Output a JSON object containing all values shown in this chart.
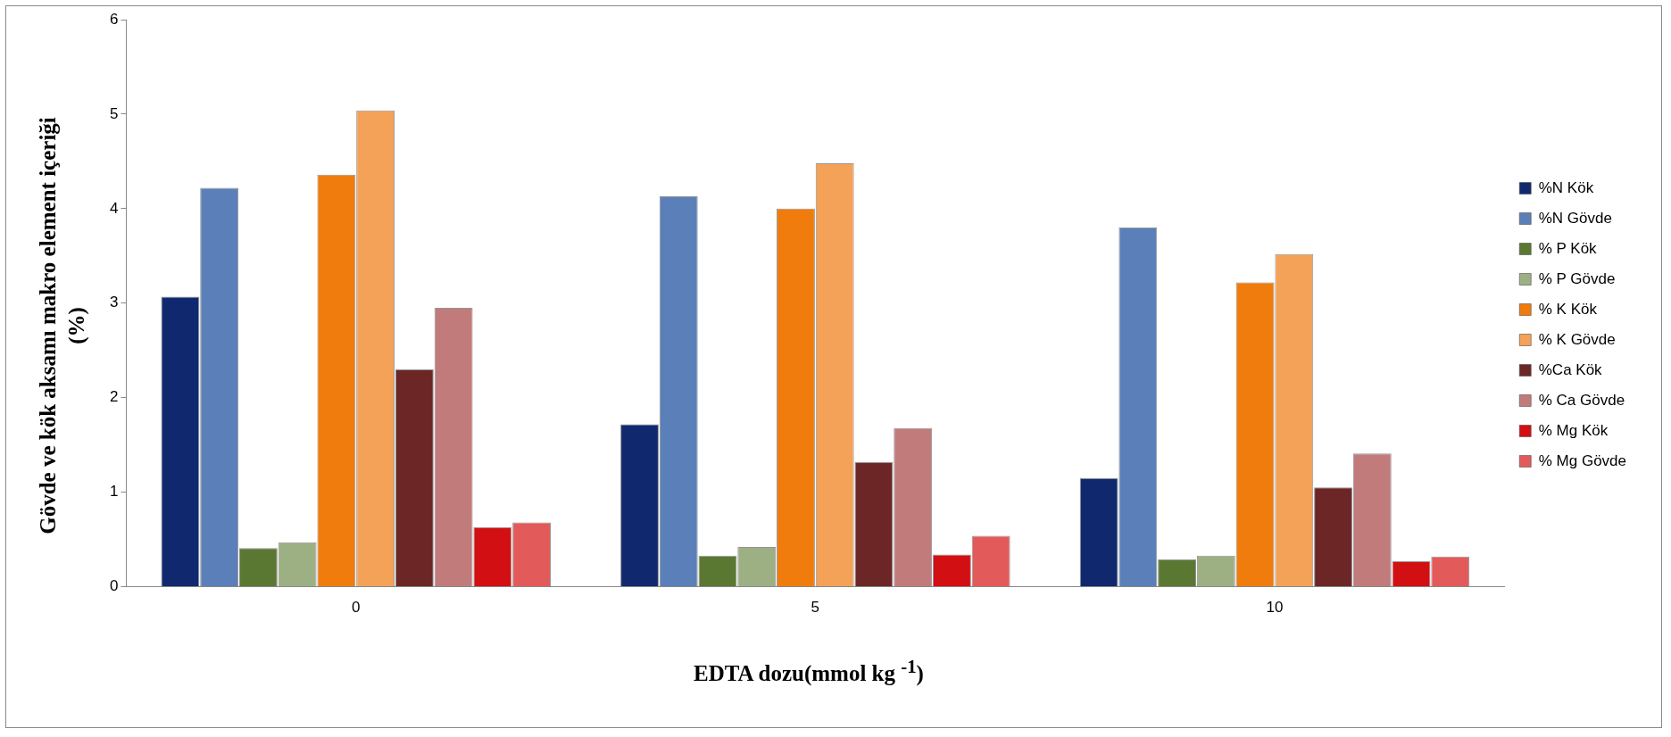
{
  "chart_data": {
    "type": "bar",
    "xlabel": "EDTA dozu(mmol  kg $^{-1}$)",
    "ylabel": "Gövde ve kök aksamı makro element içeriği (%)",
    "categories": [
      "0",
      "5",
      "10"
    ],
    "series": [
      {
        "name": "%N Kök",
        "color": "#10296e",
        "values": [
          3.07,
          1.72,
          1.15
        ]
      },
      {
        "name": "%N Gövde",
        "color": "#5b80b9",
        "values": [
          4.22,
          4.13,
          3.8
        ]
      },
      {
        "name": "% P Kök",
        "color": "#5b7833",
        "values": [
          0.41,
          0.33,
          0.29
        ]
      },
      {
        "name": "% P Gövde",
        "color": "#9db083",
        "values": [
          0.47,
          0.42,
          0.33
        ]
      },
      {
        "name": "% K Kök",
        "color": "#f07c0e",
        "values": [
          4.36,
          4.0,
          3.22
        ]
      },
      {
        "name": "% K Gövde",
        "color": "#f4a257",
        "values": [
          5.04,
          4.48,
          3.52
        ]
      },
      {
        "name": "%Ca Kök",
        "color": "#6c2626",
        "values": [
          2.3,
          1.32,
          1.05
        ]
      },
      {
        "name": "% Ca Gövde",
        "color": "#c27b7b",
        "values": [
          2.95,
          1.68,
          1.41
        ]
      },
      {
        "name": "% Mg Kök",
        "color": "#d20f12",
        "values": [
          0.63,
          0.34,
          0.27
        ]
      },
      {
        "name": "% Mg Gövde",
        "color": "#e25a5a",
        "values": [
          0.68,
          0.54,
          0.32
        ]
      }
    ],
    "ylim": [
      0,
      6
    ],
    "yticks": [
      0,
      1,
      2,
      3,
      4,
      5,
      6
    ],
    "grid": false,
    "legend": "right"
  }
}
